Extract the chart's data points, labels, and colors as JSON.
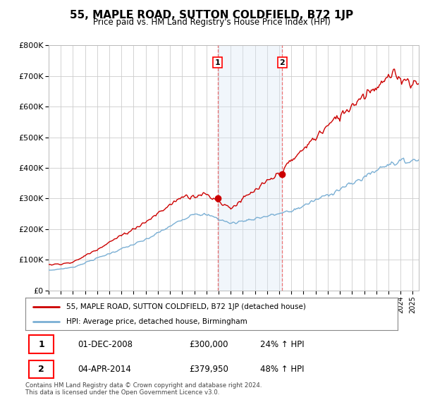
{
  "title": "55, MAPLE ROAD, SUTTON COLDFIELD, B72 1JP",
  "subtitle": "Price paid vs. HM Land Registry's House Price Index (HPI)",
  "background_color": "#ffffff",
  "plot_bg_color": "#ffffff",
  "grid_color": "#cccccc",
  "sale1_year": 2008,
  "sale1_month": 12,
  "sale1_price": 300000,
  "sale2_year": 2014,
  "sale2_month": 4,
  "sale2_price": 379950,
  "legend_line1": "55, MAPLE ROAD, SUTTON COLDFIELD, B72 1JP (detached house)",
  "legend_line2": "HPI: Average price, detached house, Birmingham",
  "table_row1_date": "01-DEC-2008",
  "table_row1_price": "£300,000",
  "table_row1_hpi": "24% ↑ HPI",
  "table_row2_date": "04-APR-2014",
  "table_row2_price": "£379,950",
  "table_row2_hpi": "48% ↑ HPI",
  "footer": "Contains HM Land Registry data © Crown copyright and database right 2024.\nThis data is licensed under the Open Government Licence v3.0.",
  "red_line_color": "#cc0000",
  "blue_line_color": "#7aafd4",
  "highlight_fill": "#d8e8f5",
  "vline_color": "#ee6666",
  "ylim_min": 0,
  "ylim_max": 800000,
  "x_start_year": 1995,
  "x_end_year": 2025
}
